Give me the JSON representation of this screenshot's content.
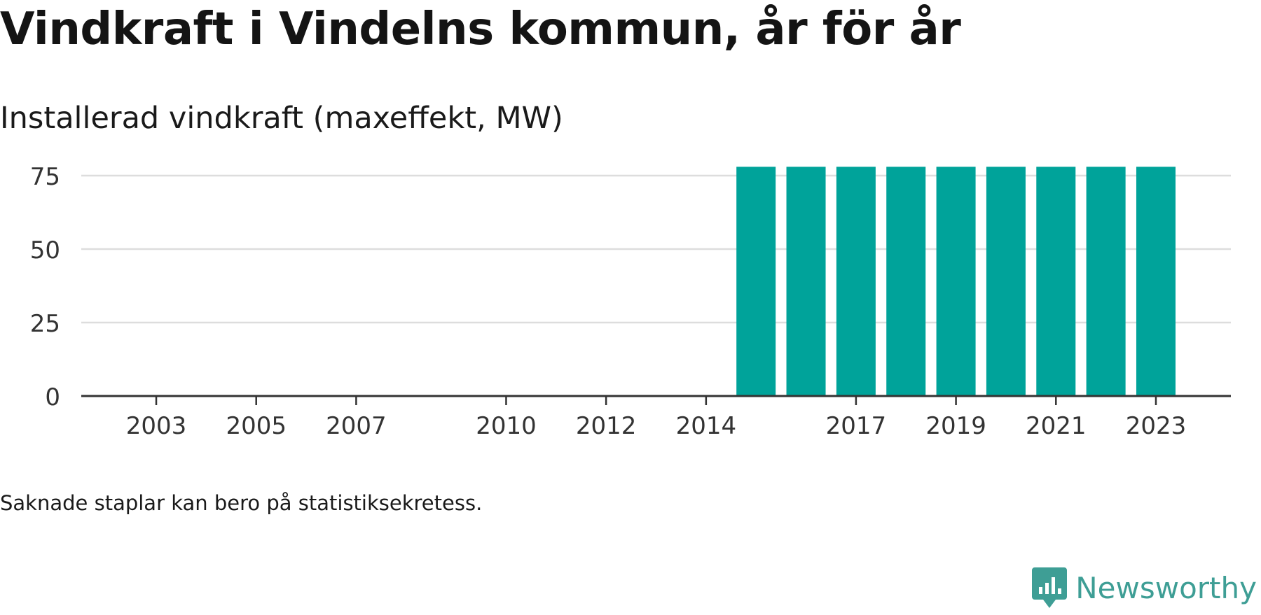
{
  "title": "Vindkraft i Vindelns kommun, år för år",
  "subtitle": "Installerad vindkraft (maxeffekt, MW)",
  "footnote": "Saknade staplar kan bero på statistiksekretess.",
  "brand": {
    "name": "Newsworthy",
    "icon": "chat-bar-chart-icon",
    "color": "#3e9e95"
  },
  "chart_data": {
    "type": "bar",
    "x": [
      2015,
      2016,
      2017,
      2018,
      2019,
      2020,
      2021,
      2022,
      2023
    ],
    "values": [
      78,
      78,
      78,
      78,
      78,
      78,
      78,
      78,
      78
    ],
    "xlim": [
      2001.5,
      2024.5
    ],
    "ylim": [
      0,
      80
    ],
    "xticks": [
      2003,
      2005,
      2007,
      2010,
      2012,
      2014,
      2017,
      2019,
      2021,
      2023
    ],
    "yticks": [
      0,
      25,
      50,
      75
    ],
    "grid": true,
    "bar_color": "#00a39a",
    "gridline_color": "#dddddd",
    "axis_color": "#333333"
  }
}
